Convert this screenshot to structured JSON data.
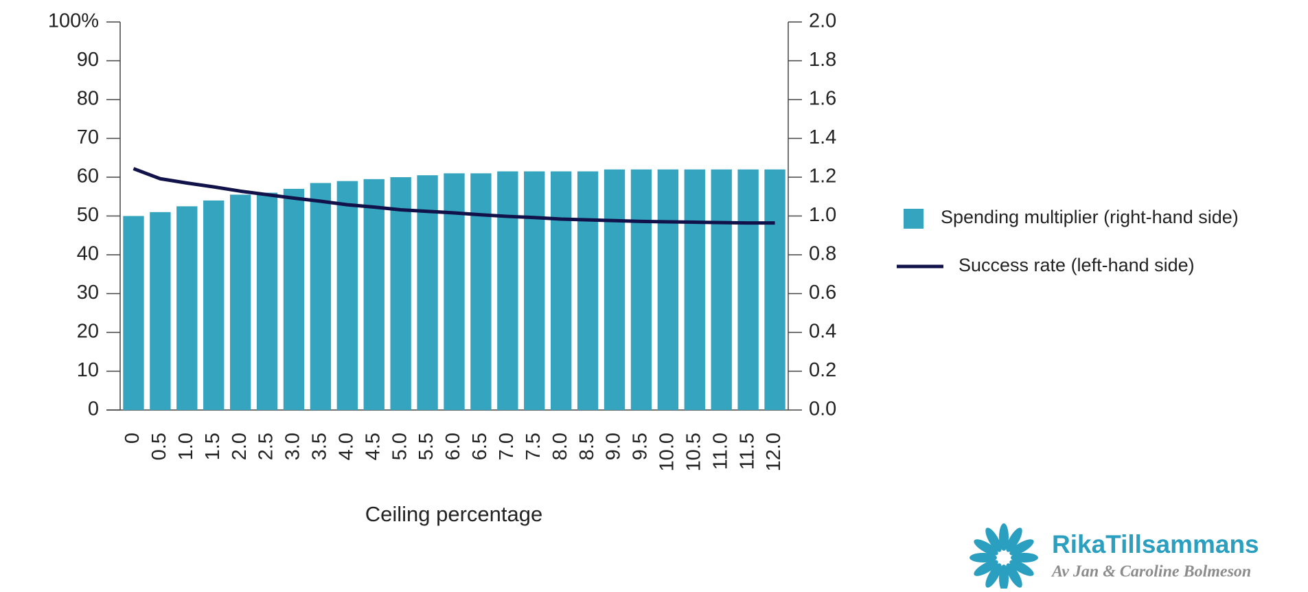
{
  "chart_data": {
    "type": "bar",
    "x_label": "Ceiling percentage",
    "categories": [
      "0",
      "0.5",
      "1.0",
      "1.5",
      "2.0",
      "2.5",
      "3.0",
      "3.5",
      "4.0",
      "4.5",
      "5.0",
      "5.5",
      "6.0",
      "6.5",
      "7.0",
      "7.5",
      "8.0",
      "8.5",
      "9.0",
      "9.5",
      "10.0",
      "10.5",
      "11.0",
      "11.5",
      "12.0"
    ],
    "series": [
      {
        "name": "Spending multiplier (right-hand side)",
        "type": "bar",
        "axis": "y2",
        "color": "#35a4bf",
        "values": [
          1.0,
          1.02,
          1.05,
          1.08,
          1.11,
          1.12,
          1.14,
          1.17,
          1.18,
          1.19,
          1.2,
          1.21,
          1.22,
          1.22,
          1.23,
          1.23,
          1.23,
          1.23,
          1.24,
          1.24,
          1.24,
          1.24,
          1.24,
          1.24,
          1.24
        ]
      },
      {
        "name": "Success rate (left-hand side)",
        "type": "line",
        "axis": "y",
        "color": "#12124a",
        "values": [
          62.2,
          59.6,
          58.5,
          57.5,
          56.4,
          55.5,
          54.6,
          53.8,
          52.9,
          52.3,
          51.6,
          51.2,
          50.8,
          50.3,
          49.9,
          49.6,
          49.2,
          49.0,
          48.8,
          48.6,
          48.5,
          48.4,
          48.3,
          48.2,
          48.2
        ]
      }
    ],
    "ylim": [
      0,
      100
    ],
    "yticks": [
      0,
      10,
      20,
      30,
      40,
      50,
      60,
      70,
      80,
      90,
      {
        "value": 100,
        "label": "100%"
      }
    ],
    "y2lim": [
      0,
      2
    ],
    "y2ticks": [
      {
        "value": 0,
        "label": "0.0"
      },
      0.2,
      0.4,
      0.6,
      0.8,
      {
        "value": 1,
        "label": "1.0"
      },
      1.2,
      1.4,
      1.6,
      1.8,
      {
        "value": 2,
        "label": "2.0"
      }
    ],
    "grid": false,
    "legend": "right"
  },
  "logo": {
    "name": "RikaTillsammans",
    "byline": "Av Jan & Caroline Bolmeson"
  }
}
